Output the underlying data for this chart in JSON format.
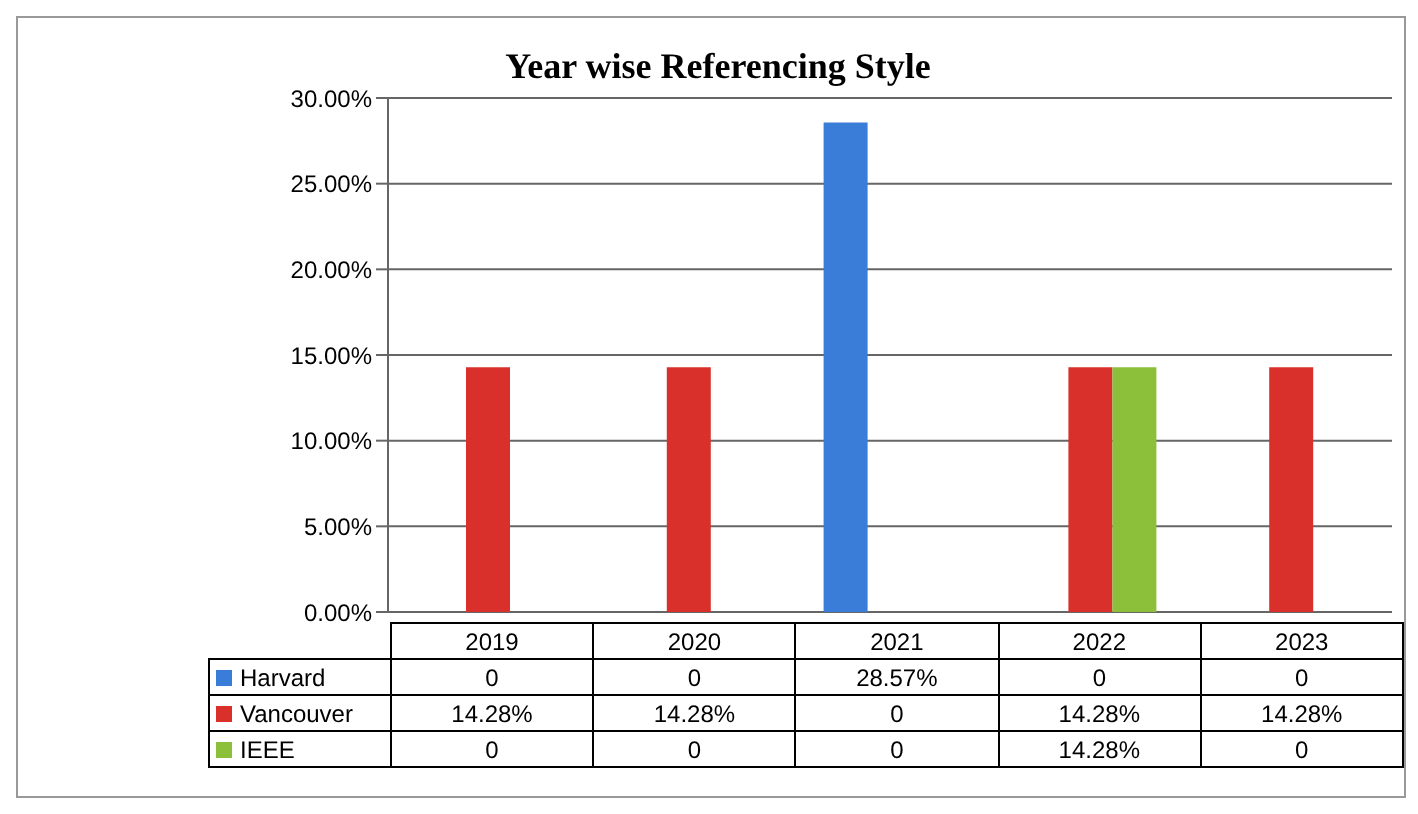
{
  "chart_data": {
    "type": "bar",
    "title": "Year wise Referencing Style",
    "categories": [
      "2019",
      "2020",
      "2021",
      "2022",
      "2023"
    ],
    "series": [
      {
        "name": "Harvard",
        "color": "#3a7dd8",
        "values": [
          0,
          0,
          28.57,
          0,
          0
        ],
        "value_labels": [
          "0",
          "0",
          "28.57%",
          "0",
          "0"
        ]
      },
      {
        "name": "Vancouver",
        "color": "#d9302c",
        "values": [
          14.28,
          14.28,
          0,
          14.28,
          14.28
        ],
        "value_labels": [
          "14.28%",
          "14.28%",
          "0",
          "14.28%",
          "14.28%"
        ]
      },
      {
        "name": "IEEE",
        "color": "#8cbf3a",
        "values": [
          0,
          0,
          0,
          14.28,
          0
        ],
        "value_labels": [
          "0",
          "0",
          "0",
          "14.28%",
          "0"
        ]
      }
    ],
    "ylim": [
      0,
      30
    ],
    "yticks": [
      {
        "value": 0,
        "label": "0.00%"
      },
      {
        "value": 5,
        "label": "5.00%"
      },
      {
        "value": 10,
        "label": "10.00%"
      },
      {
        "value": 15,
        "label": "15.00%"
      },
      {
        "value": 20,
        "label": "20.00%"
      },
      {
        "value": 25,
        "label": "25.00%"
      },
      {
        "value": 30,
        "label": "30.00%"
      }
    ],
    "grid": "y",
    "legend": "bottom"
  }
}
